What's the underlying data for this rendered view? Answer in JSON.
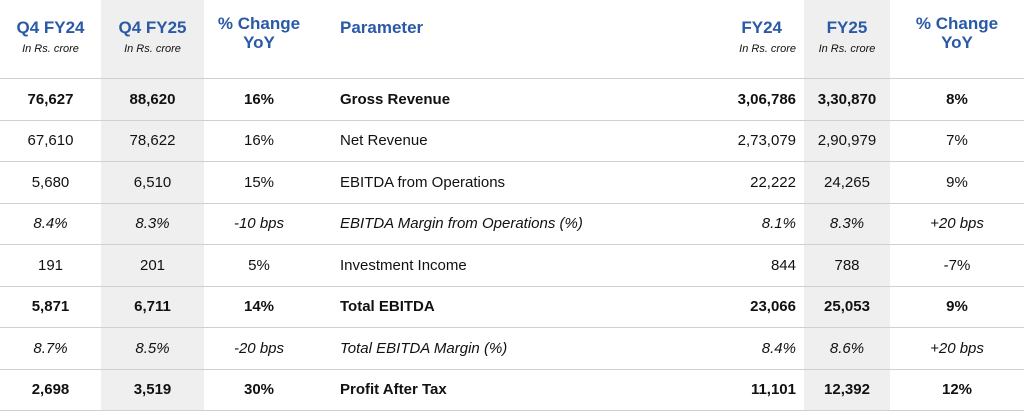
{
  "headers": {
    "q4fy24": {
      "title": "Q4 FY24",
      "sub": "In Rs. crore"
    },
    "q4fy25": {
      "title": "Q4 FY25",
      "sub": "In Rs. crore"
    },
    "chg_q": {
      "line1": "% Change",
      "line2": "YoY"
    },
    "param": {
      "title": "Parameter"
    },
    "fy24": {
      "title": "FY24",
      "sub": "In Rs. crore"
    },
    "fy25": {
      "title": "FY25",
      "sub": "In Rs. crore"
    },
    "chg_y": {
      "line1": "% Change",
      "line2": "YoY"
    }
  },
  "rows": [
    {
      "q4fy24": "76,627",
      "q4fy25": "88,620",
      "chg_q": "16%",
      "param": "Gross Revenue",
      "fy24": "3,06,786",
      "fy25": "3,30,870",
      "chg_y": "8%"
    },
    {
      "q4fy24": "67,610",
      "q4fy25": "78,622",
      "chg_q": "16%",
      "param": "Net Revenue",
      "fy24": "2,73,079",
      "fy25": "2,90,979",
      "chg_y": "7%"
    },
    {
      "q4fy24": "5,680",
      "q4fy25": "6,510",
      "chg_q": "15%",
      "param": "EBITDA from Operations",
      "fy24": "22,222",
      "fy25": "24,265",
      "chg_y": "9%"
    },
    {
      "q4fy24": "8.4%",
      "q4fy25": "8.3%",
      "chg_q": "-10 bps",
      "param": "EBITDA Margin from Operations (%)",
      "fy24": "8.1%",
      "fy25": "8.3%",
      "chg_y": "+20 bps"
    },
    {
      "q4fy24": "191",
      "q4fy25": "201",
      "chg_q": "5%",
      "param": "Investment Income",
      "fy24": "844",
      "fy25": "788",
      "chg_y": "-7%"
    },
    {
      "q4fy24": "5,871",
      "q4fy25": "6,711",
      "chg_q": "14%",
      "param": "Total EBITDA",
      "fy24": "23,066",
      "fy25": "25,053",
      "chg_y": "9%"
    },
    {
      "q4fy24": "8.7%",
      "q4fy25": "8.5%",
      "chg_q": "-20 bps",
      "param": "Total EBITDA Margin (%)",
      "fy24": "8.4%",
      "fy25": "8.6%",
      "chg_y": "+20 bps"
    },
    {
      "q4fy24": "2,698",
      "q4fy25": "3,519",
      "chg_q": "30%",
      "param": "Profit After Tax",
      "fy24": "11,101",
      "fy25": "12,392",
      "chg_y": "12%"
    }
  ],
  "colors": {
    "header_text": "#2a5aa6",
    "shade": "#efefef",
    "rule": "#d0d0d0"
  }
}
